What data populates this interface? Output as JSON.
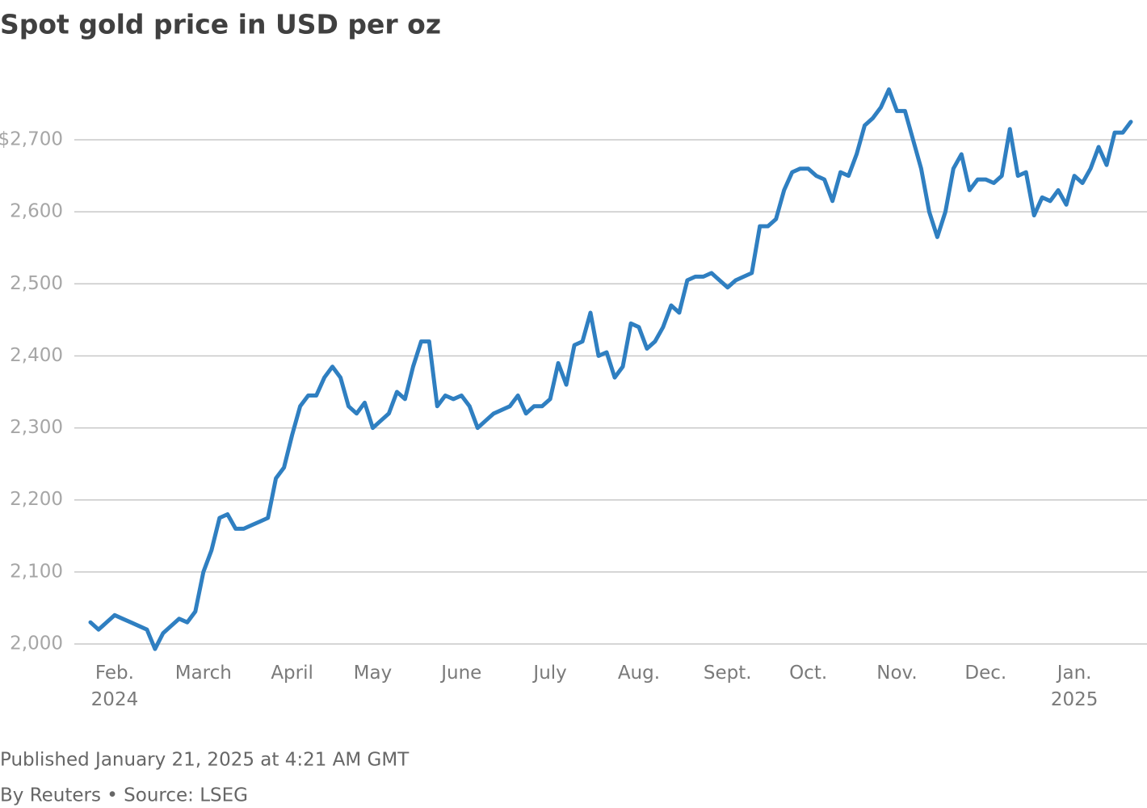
{
  "chart_data": {
    "type": "line",
    "title": "Spot gold price in USD per oz",
    "published": "Published January 21, 2025 at 4:21 AM GMT",
    "byline": "By Reuters • Source: LSEG",
    "categories": [
      null,
      null,
      null,
      "Feb.\n2024",
      null,
      null,
      null,
      null,
      null,
      null,
      null,
      null,
      null,
      null,
      "March",
      null,
      null,
      null,
      null,
      null,
      null,
      null,
      null,
      null,
      null,
      "April",
      null,
      null,
      null,
      null,
      null,
      null,
      null,
      null,
      null,
      "May",
      null,
      null,
      null,
      null,
      null,
      null,
      null,
      null,
      null,
      null,
      "June",
      null,
      null,
      null,
      null,
      null,
      null,
      null,
      null,
      null,
      null,
      "July",
      null,
      null,
      null,
      null,
      null,
      null,
      null,
      null,
      null,
      null,
      "Aug.",
      null,
      null,
      null,
      null,
      null,
      null,
      null,
      null,
      null,
      null,
      "Sept.",
      null,
      null,
      null,
      null,
      null,
      null,
      null,
      null,
      null,
      "Oct.",
      null,
      null,
      null,
      null,
      null,
      null,
      null,
      null,
      null,
      null,
      "Nov.",
      null,
      null,
      null,
      null,
      null,
      null,
      null,
      null,
      null,
      null,
      "Dec.",
      null,
      null,
      null,
      null,
      null,
      null,
      null,
      null,
      null,
      null,
      "Jan.\n2025",
      null,
      null,
      null,
      null,
      null,
      null,
      null
    ],
    "series": [
      {
        "name": "Spot gold",
        "color": "#2f7fc1",
        "values": [
          2030,
          2020,
          2030,
          2040,
          2035,
          2030,
          2025,
          2020,
          1993,
          2015,
          2025,
          2035,
          2030,
          2045,
          2100,
          2130,
          2175,
          2180,
          2160,
          2160,
          2165,
          2170,
          2175,
          2230,
          2245,
          2290,
          2330,
          2345,
          2345,
          2370,
          2385,
          2370,
          2330,
          2320,
          2335,
          2300,
          2310,
          2320,
          2350,
          2340,
          2385,
          2420,
          2420,
          2330,
          2345,
          2340,
          2345,
          2330,
          2300,
          2310,
          2320,
          2325,
          2330,
          2345,
          2320,
          2330,
          2330,
          2340,
          2390,
          2360,
          2415,
          2420,
          2460,
          2400,
          2405,
          2370,
          2385,
          2445,
          2440,
          2410,
          2420,
          2440,
          2470,
          2460,
          2505,
          2510,
          2510,
          2515,
          2505,
          2495,
          2505,
          2510,
          2515,
          2580,
          2580,
          2590,
          2630,
          2655,
          2660,
          2660,
          2650,
          2645,
          2615,
          2655,
          2650,
          2680,
          2720,
          2730,
          2745,
          2770,
          2740,
          2740,
          2700,
          2660,
          2600,
          2565,
          2600,
          2660,
          2680,
          2630,
          2645,
          2645,
          2640,
          2650,
          2715,
          2650,
          2655,
          2595,
          2620,
          2615,
          2630,
          2610,
          2650,
          2640,
          2660,
          2690,
          2665,
          2710,
          2710,
          2725
        ]
      }
    ],
    "ylim": [
      1990,
      2800
    ],
    "yticks": [
      {
        "value": 2000,
        "label": "2,000"
      },
      {
        "value": 2100,
        "label": "2,100"
      },
      {
        "value": 2200,
        "label": "2,200"
      },
      {
        "value": 2300,
        "label": "2,300"
      },
      {
        "value": 2400,
        "label": "2,400"
      },
      {
        "value": 2500,
        "label": "2,500"
      },
      {
        "value": 2600,
        "label": "2,600"
      },
      {
        "value": 2700,
        "label": "$2,700"
      }
    ],
    "grid": true
  }
}
